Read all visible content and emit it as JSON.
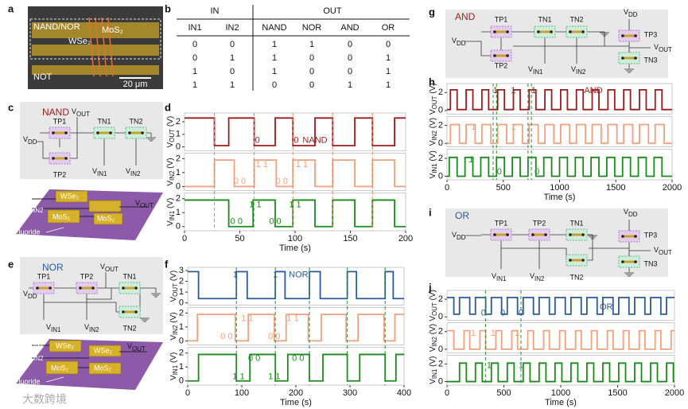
{
  "panel_labels": [
    "a",
    "b",
    "c",
    "d",
    "e",
    "f",
    "g",
    "h",
    "i",
    "j"
  ],
  "micrograph": {
    "labels": [
      "NAND/NOR",
      "MoS₂",
      "WSe₂",
      "NOT"
    ],
    "scale_bar": "20 μm"
  },
  "truth_table": {
    "groups": [
      "IN",
      "OUT"
    ],
    "columns": [
      "IN1",
      "IN2",
      "NAND",
      "NOR",
      "AND",
      "OR"
    ],
    "rows": [
      [
        0,
        0,
        1,
        1,
        0,
        0
      ],
      [
        0,
        1,
        1,
        0,
        0,
        1
      ],
      [
        1,
        0,
        1,
        0,
        0,
        1
      ],
      [
        1,
        1,
        0,
        0,
        1,
        1
      ]
    ]
  },
  "circuits": {
    "c": {
      "title": "NAND",
      "tp1": "TP1",
      "tp2": "TP2",
      "tn1": "TN1",
      "tn2": "TN2",
      "vdd": [
        "V",
        "DD"
      ],
      "vout": [
        "V",
        "OUT"
      ],
      "vin1": [
        "V",
        "IN1"
      ],
      "vin2": [
        "V",
        "IN2"
      ]
    },
    "e": {
      "title": "NOR",
      "tp1": "TP1",
      "tp2": "TP2",
      "tn1": "TN1",
      "tn2": "TN2",
      "vdd": [
        "V",
        "DD"
      ],
      "vout": [
        "V",
        "OUT"
      ],
      "vin1": [
        "V",
        "IN1"
      ],
      "vin2": [
        "V",
        "IN2"
      ]
    },
    "g": {
      "title": "AND",
      "tp1": "TP1",
      "tp2": "TP2",
      "tn1": "TN1",
      "tn2": "TN2",
      "tp3": "TP3",
      "tn3": "TN3",
      "vdd": [
        "V",
        "DD"
      ],
      "vdd_top": [
        "V",
        "DD"
      ],
      "vout": [
        "V",
        "OUT"
      ],
      "vin1": [
        "V",
        "IN1"
      ],
      "vin2": [
        "V",
        "IN2"
      ]
    },
    "i": {
      "title": "OR",
      "tp1": "TP1",
      "tp2": "TP2",
      "tn1": "TN1",
      "tn2": "TN2",
      "tp3": "TP3",
      "tn3": "TN3",
      "vdd": [
        "V",
        "DD"
      ],
      "vdd_top": [
        "V",
        "DD"
      ],
      "vout": [
        "V",
        "OUT"
      ],
      "vin1": [
        "V",
        "IN1"
      ],
      "vin2": [
        "V",
        "IN2"
      ]
    }
  },
  "devices": {
    "c": {
      "vin1": [
        "V",
        "IN1"
      ],
      "vin2": [
        "V",
        "IN2"
      ],
      "wse2": "WSe₂",
      "mos2_a": "MoS₂",
      "mos2_b": "MoS₂",
      "vout": [
        "V",
        "OUT"
      ],
      "fluoride": "Fluoride"
    },
    "e": {
      "vin1": [
        "V",
        "IN1"
      ],
      "vin2": [
        "V",
        "IN2"
      ],
      "wse2_a": "WSe₂",
      "wse2_b": "WSe₂",
      "mos2_a": "MoS₂",
      "mos2_b": "MoS₂",
      "vout": [
        "V",
        "OUT"
      ],
      "fluoride": "Fluoride"
    }
  },
  "charts": {
    "d": {
      "type": "line",
      "xlabel": "Time (s)",
      "xlim": [
        0,
        200
      ],
      "xticks": [
        0,
        50,
        100,
        150,
        200
      ],
      "vlines": [
        27,
        63,
        98,
        134,
        170
      ],
      "vline_color": "#e0875a",
      "subplots": [
        {
          "ylabel": [
            "V",
            "OUT",
            " (V)"
          ],
          "ylim": [
            -0.3,
            2.7
          ],
          "yticks": [
            0,
            1,
            2
          ],
          "color": "#9b1c1c",
          "x": [
            0,
            27,
            40,
            63,
            82,
            98,
            118,
            134,
            154,
            170,
            190
          ],
          "values": [
            2.3,
            0.1,
            2.3,
            0.1,
            2.3,
            0.1,
            2.3,
            0.1,
            2.3,
            0.1,
            2.3
          ],
          "annotations": [
            "0",
            "0",
            "NAND"
          ]
        },
        {
          "ylabel": [
            "V",
            "IN2",
            " (V)"
          ],
          "ylim": [
            -0.3,
            2.4
          ],
          "yticks": [
            0,
            1,
            2
          ],
          "color": "#f0a07a",
          "x": [
            0,
            27,
            45,
            63,
            83,
            98,
            118,
            134,
            154,
            170,
            190
          ],
          "values": [
            0,
            1.9,
            0,
            1.9,
            0,
            1.9,
            0,
            1.9,
            0,
            1.9,
            0
          ],
          "annotations": [
            "0 0",
            "1 1",
            "0 0",
            "1 1"
          ]
        },
        {
          "ylabel": [
            "V",
            "IN1",
            " (V)"
          ],
          "ylim": [
            -0.3,
            2.4
          ],
          "yticks": [
            0,
            1,
            2
          ],
          "color": "#1a8a1a",
          "x": [
            0,
            40,
            62,
            82,
            98,
            118,
            134,
            154,
            170,
            190
          ],
          "values": [
            1.9,
            0,
            1.9,
            0,
            1.9,
            0,
            1.9,
            0,
            1.9,
            0
          ],
          "annotations": [
            "0 0",
            "1 1",
            "0 0",
            "1 1"
          ]
        }
      ]
    },
    "f": {
      "type": "line",
      "xlabel": "Time (s)",
      "xlim": [
        0,
        400
      ],
      "xticks": [
        0,
        100,
        200,
        300,
        400
      ],
      "vlines": [
        90,
        162,
        225,
        295,
        365
      ],
      "vline_color": "#2e8b3a",
      "subplots": [
        {
          "ylabel": [
            "V",
            "OUT",
            " (V)"
          ],
          "ylim": [
            -0.2,
            3.3
          ],
          "yticks": [
            0,
            1,
            2,
            3
          ],
          "color": "#2b5a9a",
          "x": [
            0,
            20,
            90,
            110,
            162,
            180,
            225,
            245,
            295,
            312,
            365,
            380
          ],
          "values": [
            2.9,
            0.4,
            2.9,
            0.4,
            2.9,
            0.4,
            2.9,
            0.4,
            2.9,
            0.4,
            2.9,
            0.4
          ],
          "annotations": [
            "1",
            "1",
            "NOR"
          ]
        },
        {
          "ylabel": [
            "V",
            "IN2",
            " (V)"
          ],
          "ylim": [
            -0.3,
            2.4
          ],
          "yticks": [
            0,
            1,
            2
          ],
          "color": "#f0a07a",
          "x": [
            0,
            18,
            88,
            112,
            160,
            182,
            223,
            247,
            293,
            315,
            363,
            383
          ],
          "values": [
            0,
            1.9,
            0,
            1.9,
            0,
            1.9,
            0,
            1.9,
            0,
            1.9,
            0,
            1.9
          ],
          "annotations": [
            "0 0",
            "1 1",
            "0 0",
            "1 1"
          ]
        },
        {
          "ylabel": [
            "V",
            "IN1",
            " (V)"
          ],
          "ylim": [
            -0.3,
            2.4
          ],
          "yticks": [
            0,
            1,
            2
          ],
          "color": "#1a8a1a",
          "x": [
            0,
            20,
            90,
            115,
            162,
            185,
            225,
            250,
            295,
            318,
            365,
            385
          ],
          "values": [
            0,
            1.9,
            0,
            1.9,
            0,
            1.9,
            0,
            1.9,
            0,
            1.9,
            0,
            1.9
          ],
          "annotations": [
            "0 0",
            "1 1",
            "0 0",
            "1 1"
          ]
        }
      ]
    },
    "h": {
      "type": "line",
      "xlabel": "Time (s)",
      "xlim": [
        0,
        2000
      ],
      "xticks": [
        0,
        500,
        1000,
        1500,
        2000
      ],
      "vlines": [
        410,
        440,
        720,
        750
      ],
      "vline_color": "#2e8b3a",
      "subplots": [
        {
          "ylabel": [
            "V",
            "OUT",
            " (V)"
          ],
          "ylim": [
            -0.4,
            3
          ],
          "yticks": [
            0,
            2
          ],
          "color": "#9b1c1c",
          "x": [
            0,
            30,
            90,
            170,
            230,
            310,
            370,
            450,
            510,
            590,
            650,
            730,
            790,
            870,
            930,
            1010,
            1070,
            1150,
            1210,
            1290,
            1350,
            1430,
            1490,
            1570,
            1630,
            1710,
            1770,
            1850,
            1910
          ],
          "values": [
            0.1,
            2.3,
            0.1,
            2.3,
            0.1,
            2.3,
            0.1,
            2.3,
            0.1,
            2.3,
            0.1,
            2.3,
            0.1,
            2.3,
            0.1,
            2.3,
            0.1,
            2.3,
            0.1,
            2.3,
            0.1,
            2.3,
            0.1,
            2.3,
            0.1,
            2.3,
            0.1,
            2.3,
            0.1
          ],
          "annotations": [
            "1",
            "1",
            "1",
            "AND"
          ]
        },
        {
          "ylabel": [
            "V",
            "IN2",
            " (V)"
          ],
          "ylim": [
            -0.4,
            3
          ],
          "yticks": [
            0,
            2
          ],
          "color": "#f0a07a",
          "x": [
            0,
            30,
            110,
            170,
            250,
            310,
            390,
            450,
            530,
            590,
            670,
            730,
            810,
            870,
            950,
            1010,
            1090,
            1150,
            1230,
            1290,
            1370,
            1430,
            1510,
            1570,
            1650,
            1710,
            1790,
            1850,
            1930
          ],
          "values": [
            0,
            2.1,
            0,
            2.1,
            0,
            2.1,
            0,
            2.1,
            0,
            2.1,
            0,
            2.1,
            0,
            2.1,
            0,
            2.1,
            0,
            2.1,
            0,
            2.1,
            0,
            2.1,
            0,
            2.1,
            0,
            2.1,
            0,
            2.1,
            0
          ],
          "annotations": [
            "1",
            "1"
          ]
        },
        {
          "ylabel": [
            "V",
            "IN1",
            " (V)"
          ],
          "ylim": [
            -0.4,
            3
          ],
          "yticks": [
            0,
            2
          ],
          "color": "#1a8a1a",
          "x": [
            0,
            20,
            90,
            160,
            230,
            300,
            370,
            440,
            510,
            580,
            650,
            720,
            790,
            860,
            930,
            1000,
            1070,
            1140,
            1210,
            1280,
            1350,
            1420,
            1490,
            1560,
            1630,
            1700,
            1770,
            1840,
            1910
          ],
          "values": [
            0,
            2.1,
            0,
            2.1,
            0,
            2.1,
            0,
            2.1,
            0,
            2.1,
            0,
            2.1,
            0,
            2.1,
            0,
            2.1,
            0,
            2.1,
            0,
            2.1,
            0,
            2.1,
            0,
            2.1,
            0,
            2.1,
            0,
            2.1,
            0
          ],
          "annotations": [
            "1",
            "0",
            "0"
          ]
        }
      ]
    },
    "j": {
      "type": "line",
      "xlabel": "Time (s)",
      "xlim": [
        0,
        2000
      ],
      "xticks": [
        0,
        500,
        1000,
        1500,
        2000
      ],
      "vlines": [
        340,
        650
      ],
      "vline_color": "#2e8b3a",
      "subplots": [
        {
          "ylabel": [
            "V",
            "OUT",
            " (V)"
          ],
          "ylim": [
            -0.4,
            3
          ],
          "yticks": [
            0,
            2
          ],
          "color": "#2b5a9a",
          "x": [
            0,
            60,
            110,
            200,
            250,
            340,
            390,
            480,
            530,
            620,
            670,
            760,
            810,
            900,
            950,
            1040,
            1090,
            1180,
            1230,
            1320,
            1370,
            1460,
            1510,
            1600,
            1650,
            1740,
            1790,
            1880,
            1930
          ],
          "values": [
            2.2,
            0.3,
            2.2,
            0.3,
            2.2,
            0.3,
            2.2,
            0.3,
            2.2,
            0.3,
            2.2,
            0.3,
            2.2,
            0.3,
            2.2,
            0.3,
            2.2,
            0.3,
            2.2,
            0.3,
            2.2,
            0.3,
            2.2,
            0.3,
            2.2,
            0.3,
            2.2,
            0.3,
            2.2
          ],
          "annotations": [
            "0",
            "0",
            "0",
            "OR"
          ]
        },
        {
          "ylabel": [
            "V",
            "IN2",
            " (V)"
          ],
          "ylim": [
            -0.4,
            3
          ],
          "yticks": [
            0,
            2
          ],
          "color": "#f0a07a",
          "x": [
            0,
            60,
            150,
            200,
            290,
            340,
            430,
            480,
            570,
            620,
            710,
            760,
            850,
            900,
            990,
            1040,
            1130,
            1180,
            1270,
            1320,
            1410,
            1460,
            1550,
            1600,
            1690,
            1740,
            1830,
            1880,
            1970
          ],
          "values": [
            2.1,
            0,
            2.1,
            0,
            2.1,
            0,
            2.1,
            0,
            2.1,
            0,
            2.1,
            0,
            2.1,
            0,
            2.1,
            0,
            2.1,
            0,
            2.1,
            0,
            2.1,
            0,
            2.1,
            0,
            2.1,
            0,
            2.1,
            0,
            2.1
          ],
          "annotations": [
            "1",
            "1",
            "1"
          ]
        },
        {
          "ylabel": [
            "V",
            "IN1",
            " (V)"
          ],
          "ylim": [
            -0.4,
            3
          ],
          "yticks": [
            0,
            2
          ],
          "color": "#1a8a1a",
          "x": [
            0,
            110,
            170,
            250,
            310,
            390,
            450,
            530,
            590,
            670,
            730,
            810,
            870,
            950,
            1010,
            1090,
            1150,
            1230,
            1290,
            1370,
            1430,
            1510,
            1570,
            1650,
            1710,
            1790,
            1850,
            1930,
            1990
          ],
          "values": [
            0,
            2.1,
            0,
            2.1,
            0,
            2.1,
            0,
            2.1,
            0,
            2.1,
            0,
            2.1,
            0,
            2.1,
            0,
            2.1,
            0,
            2.1,
            0,
            2.1,
            0,
            2.1,
            0,
            2.1,
            0,
            2.1,
            0,
            2.1,
            0
          ],
          "annotations": [
            "1",
            "1"
          ]
        }
      ]
    }
  },
  "watermark": "大数跨境"
}
